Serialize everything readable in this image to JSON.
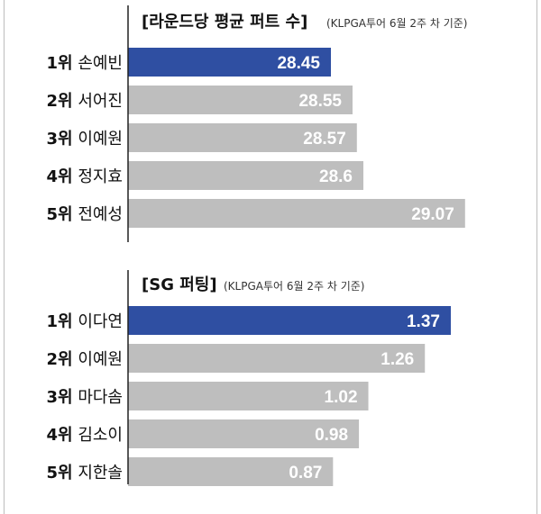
{
  "colors": {
    "highlight": "#2f4fa2",
    "bar": "#bebebe",
    "axis": "#222222",
    "label": "#ffffff"
  },
  "chart_data": [
    {
      "type": "bar",
      "orientation": "horizontal",
      "title": "[라운드당 평균 퍼트 수]",
      "subtitle": "(KLPGA투어 6월 2주 차 기준)",
      "ranks": [
        "1위",
        "2위",
        "3위",
        "4위",
        "5위"
      ],
      "categories": [
        "손예빈",
        "서어진",
        "이예원",
        "정지효",
        "전예성"
      ],
      "values": [
        28.45,
        28.55,
        28.57,
        28.6,
        29.07
      ],
      "value_labels": [
        "28.45",
        "28.55",
        "28.57",
        "28.6",
        "29.07"
      ],
      "highlight_index": 0
    },
    {
      "type": "bar",
      "orientation": "horizontal",
      "title": "[SG 퍼팅]",
      "subtitle": "(KLPGA투어 6월 2주 차 기준)",
      "ranks": [
        "1위",
        "2위",
        "3위",
        "4위",
        "5위"
      ],
      "categories": [
        "이다연",
        "이예원",
        "마다솜",
        "김소이",
        "지한솔"
      ],
      "values": [
        1.37,
        1.26,
        1.02,
        0.98,
        0.87
      ],
      "value_labels": [
        "1.37",
        "1.26",
        "1.02",
        "0.98",
        "0.87"
      ],
      "highlight_index": 0
    }
  ]
}
